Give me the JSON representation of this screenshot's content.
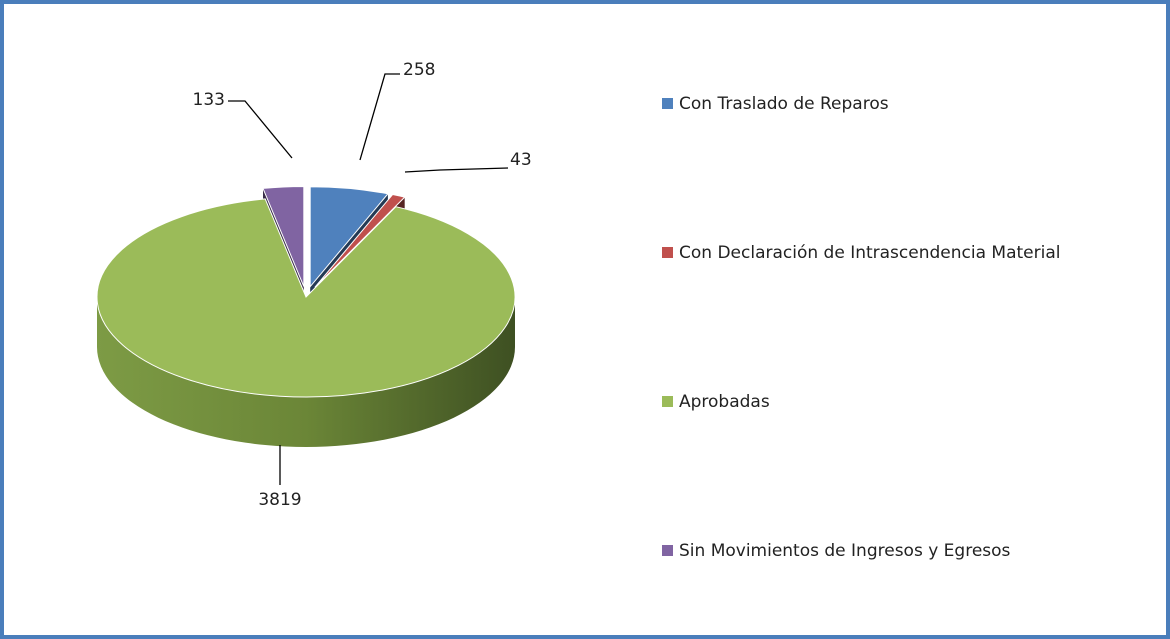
{
  "chart_data": {
    "type": "pie",
    "categories": [
      "Con Traslado de Reparos",
      "Con Declaración de Intrascendencia Material",
      "Aprobadas",
      "Sin Movimientos  de Ingresos y Egresos"
    ],
    "values": [
      258,
      43,
      3819,
      133
    ],
    "colors": [
      "#4f81bd",
      "#c0504d",
      "#9bbb59",
      "#8064a2"
    ],
    "legend": "right"
  }
}
